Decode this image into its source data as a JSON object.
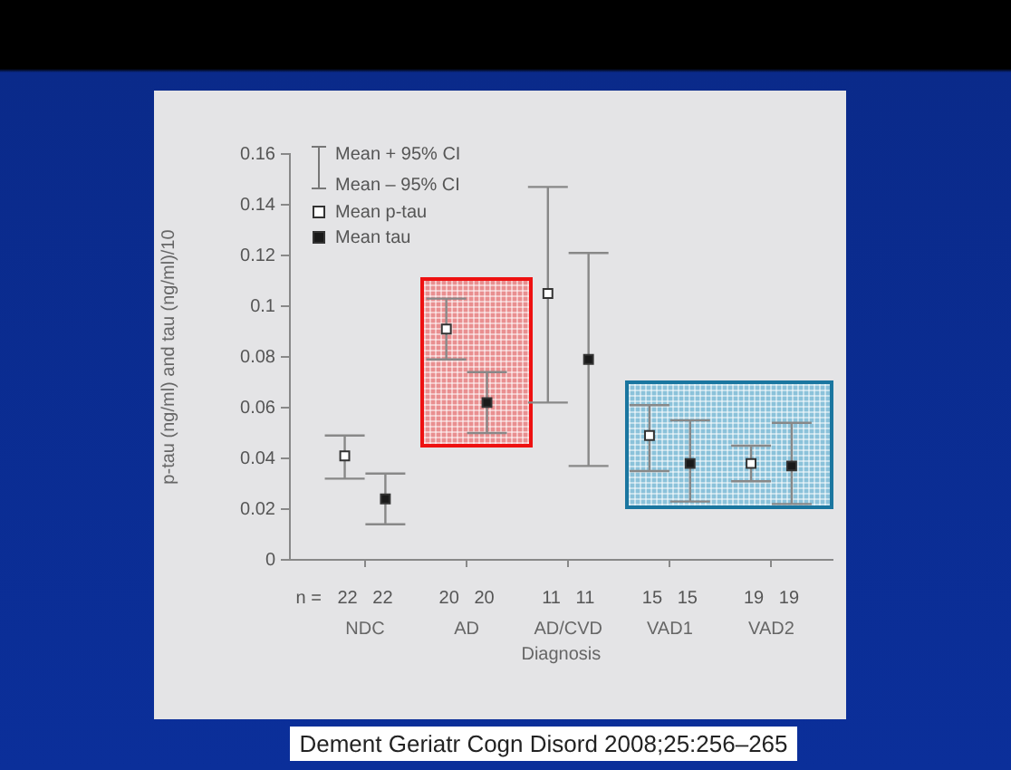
{
  "chart_data": {
    "type": "scatter",
    "xlabel": "Diagnosis",
    "ylabel": "p-tau (ng/ml) and tau (ng/ml)/10",
    "categories": [
      "NDC",
      "AD",
      "AD/CVD",
      "VAD1",
      "VAD2"
    ],
    "series": [
      {
        "name": "Mean p-tau",
        "color": "#ffffff",
        "values": [
          0.041,
          0.091,
          0.105,
          0.049,
          0.038
        ],
        "errors": [
          [
            0.032,
            0.049
          ],
          [
            0.079,
            0.103
          ],
          [
            0.062,
            0.147
          ],
          [
            0.035,
            0.061
          ],
          [
            0.031,
            0.045
          ]
        ]
      },
      {
        "name": "Mean tau",
        "color": "#1a1a1a",
        "values": [
          0.024,
          0.062,
          0.079,
          0.038,
          0.037
        ],
        "errors": [
          [
            0.014,
            0.034
          ],
          [
            0.05,
            0.074
          ],
          [
            0.037,
            0.121
          ],
          [
            0.023,
            0.055
          ],
          [
            0.022,
            0.054
          ]
        ]
      }
    ],
    "ylim": [
      0,
      0.16
    ],
    "yticks": [
      0,
      0.02,
      0.04,
      0.06,
      0.08,
      0.1,
      0.12,
      0.14,
      0.16
    ],
    "grid": false,
    "legend": "top left",
    "marker": "square",
    "annotations": [
      "Mean + 95% CI",
      "Mean – 95% CI",
      "n =",
      "22   22",
      "20   20",
      "11   11",
      "15   15",
      "19   19",
      "Dement Geriatr Cogn Disord 2008;25:256–265"
    ]
  }
}
